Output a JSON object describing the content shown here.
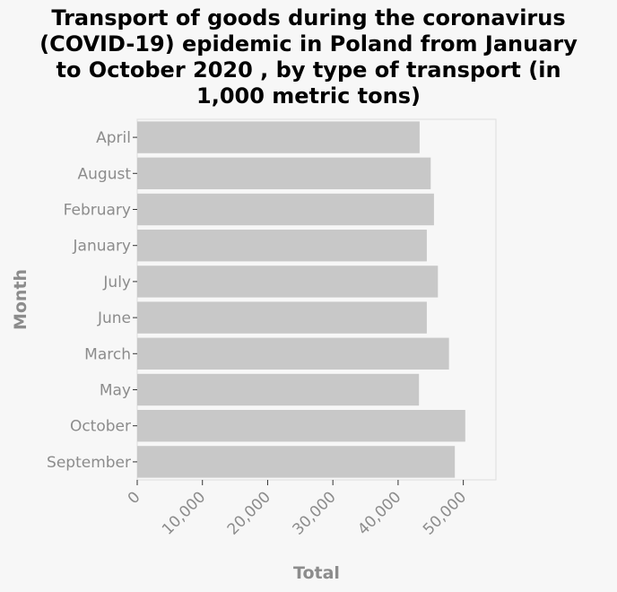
{
  "chart_data": {
    "type": "bar",
    "orientation": "horizontal",
    "title_lines": [
      "Transport of goods during the coronavirus",
      "(COVID-19) epidemic in Poland from January",
      "to October 2020 , by type of transport (in",
      "1,000 metric tons)"
    ],
    "xlabel": "Total",
    "ylabel": "Month",
    "categories": [
      "April",
      "August",
      "February",
      "January",
      "July",
      "June",
      "March",
      "May",
      "October",
      "September"
    ],
    "values": [
      43300,
      45000,
      45500,
      44400,
      46100,
      44400,
      47800,
      43200,
      50300,
      48700
    ],
    "xlim": [
      0,
      55000
    ],
    "xticks": [
      0,
      10000,
      20000,
      30000,
      40000,
      50000
    ],
    "xtick_labels": [
      "0",
      "10,000",
      "20,000",
      "30,000",
      "40,000",
      "50,000"
    ],
    "bar_color": "#c8c8c8",
    "grid": false
  }
}
